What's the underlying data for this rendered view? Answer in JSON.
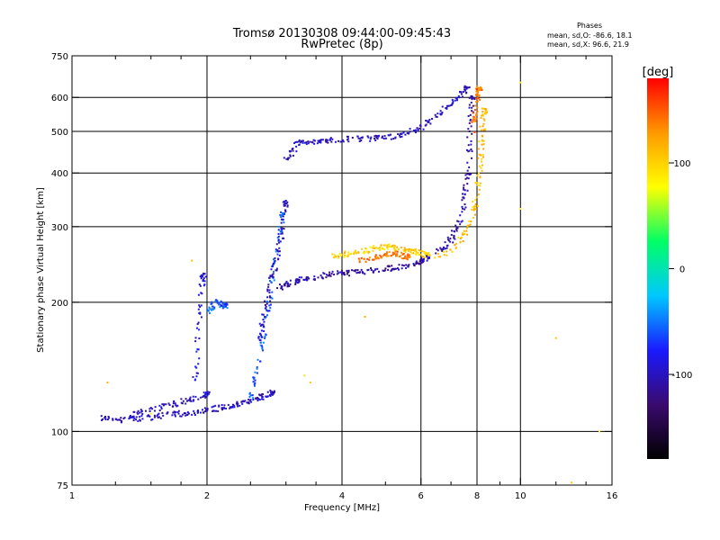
{
  "chart_data": {
    "type": "scatter",
    "title": "Tromsø 20130308 09:44:00-09:45:43",
    "subtitle": "RwPretec (8p)",
    "xlabel": "Frequency [MHz]",
    "ylabel": "Stationary phase Virtual Height [km]",
    "x_scale": "log",
    "y_scale": "log",
    "xlim": [
      1,
      16
    ],
    "ylim": [
      75,
      750
    ],
    "grid": true,
    "x_ticks": [
      1,
      2,
      4,
      6,
      8,
      10,
      16
    ],
    "x_minor_ticks": [
      1.25,
      1.5,
      1.75,
      2.5,
      3,
      3.5,
      5,
      7,
      9,
      12,
      14
    ],
    "y_ticks": [
      75,
      100,
      200,
      300,
      400,
      500,
      600,
      750
    ],
    "x_gridlines": [
      2,
      4,
      6,
      8,
      10
    ],
    "y_gridlines": [
      100,
      200,
      300,
      400,
      500,
      600
    ],
    "stats": {
      "heading": "Phases",
      "line1": "mean, sd,O: -86.6, 18.1",
      "line2": "mean, sd,X:  96.6, 21.9"
    },
    "colorbar": {
      "label": "[deg]",
      "ticks": [
        100,
        0,
        -100
      ],
      "range": [
        -180,
        180
      ],
      "colormap": [
        "#000000",
        "#3a0a6e",
        "#1a1aff",
        "#00c8ff",
        "#00ff66",
        "#ffff00",
        "#ff9900",
        "#ff0000"
      ]
    },
    "series": [
      {
        "trace": "o_low_f",
        "phase": -100,
        "x": [
          1.15,
          1.2,
          1.3,
          1.4,
          1.5,
          1.6,
          1.7,
          1.8,
          1.9,
          2.0,
          2.1,
          2.2,
          2.3,
          2.4,
          2.5,
          2.6,
          2.7,
          2.8
        ],
        "y": [
          108,
          107,
          106,
          107,
          108,
          109,
          110,
          110,
          111,
          112,
          113,
          114,
          115,
          117,
          118,
          120,
          121,
          123
        ]
      },
      {
        "trace": "o_E_lower",
        "phase": -100,
        "x": [
          1.3,
          1.4,
          1.5,
          1.6,
          1.7,
          1.8,
          1.9,
          2.0
        ],
        "y": [
          108,
          110,
          112,
          114,
          116,
          118,
          120,
          122
        ]
      },
      {
        "trace": "o_rise_2",
        "phase": -90,
        "x": [
          1.88,
          1.9,
          1.92,
          1.94,
          1.96
        ],
        "y": [
          130,
          150,
          180,
          210,
          230
        ]
      },
      {
        "trace": "o_rise_2b",
        "phase": -60,
        "x": [
          2.0,
          2.05,
          2.1,
          2.15,
          2.2
        ],
        "y": [
          190,
          195,
          200,
          198,
          196
        ]
      },
      {
        "trace": "o_rise_27",
        "phase": -60,
        "x": [
          2.5,
          2.55,
          2.6,
          2.65,
          2.7,
          2.75,
          2.8,
          2.85,
          2.9,
          2.95
        ],
        "y": [
          120,
          130,
          140,
          160,
          180,
          200,
          230,
          260,
          290,
          320
        ]
      },
      {
        "trace": "o_rise_27b",
        "phase": -100,
        "x": [
          2.6,
          2.65,
          2.7,
          2.75,
          2.8,
          2.85,
          2.9,
          2.95,
          3.0
        ],
        "y": [
          160,
          175,
          190,
          210,
          230,
          250,
          270,
          300,
          340
        ]
      },
      {
        "trace": "o_F1_plateau",
        "phase": -110,
        "x": [
          2.9,
          3.0,
          3.1,
          3.2,
          3.3,
          3.5,
          3.7,
          3.9,
          4.1,
          4.3,
          4.5,
          4.8,
          5.1,
          5.4,
          5.7,
          6.0
        ],
        "y": [
          215,
          220,
          222,
          225,
          227,
          229,
          231,
          233,
          234,
          235,
          236,
          238,
          240,
          242,
          245,
          248
        ]
      },
      {
        "trace": "o_F_top",
        "phase": -100,
        "x": [
          3.0,
          3.1,
          3.2,
          3.3,
          3.5,
          3.7,
          3.9,
          4.2,
          4.5,
          4.8,
          5.1,
          5.4,
          5.7,
          6.0,
          6.3,
          6.6,
          7.0,
          7.3,
          7.6
        ],
        "y": [
          430,
          450,
          470,
          470,
          475,
          475,
          478,
          480,
          480,
          482,
          485,
          490,
          500,
          510,
          530,
          550,
          580,
          600,
          630
        ]
      },
      {
        "trace": "x_plateau",
        "phase": 100,
        "x": [
          3.8,
          4.0,
          4.2,
          4.4,
          4.6,
          4.8,
          5.0,
          5.2,
          5.4,
          5.6,
          5.8,
          6.0,
          6.2
        ],
        "y": [
          255,
          258,
          260,
          262,
          265,
          268,
          270,
          268,
          266,
          264,
          262,
          260,
          258
        ]
      },
      {
        "trace": "x_plateau_b",
        "phase": 140,
        "x": [
          4.4,
          4.6,
          4.8,
          5.0,
          5.2,
          5.4,
          5.6
        ],
        "y": [
          250,
          252,
          255,
          258,
          260,
          258,
          255
        ]
      },
      {
        "trace": "o_foF2",
        "phase": -110,
        "x": [
          6.0,
          6.4,
          6.8,
          7.0,
          7.2,
          7.4,
          7.5,
          7.6,
          7.7,
          7.7,
          7.75,
          7.8
        ],
        "y": [
          250,
          258,
          270,
          280,
          295,
          320,
          350,
          380,
          420,
          480,
          540,
          600
        ]
      },
      {
        "trace": "x_foF2",
        "phase": 110,
        "x": [
          6.5,
          7.0,
          7.4,
          7.7,
          7.9,
          8.0,
          8.1,
          8.15,
          8.2,
          8.25,
          8.3
        ],
        "y": [
          255,
          265,
          280,
          300,
          330,
          360,
          400,
          440,
          480,
          520,
          560
        ]
      },
      {
        "trace": "x_foF2_b",
        "phase": 140,
        "x": [
          7.8,
          7.9,
          8.0,
          8.05,
          8.1
        ],
        "y": [
          500,
          540,
          580,
          610,
          630
        ]
      },
      {
        "trace": "scatter_misc",
        "phase": 100,
        "x": [
          1.2,
          1.5,
          1.85,
          3.3,
          3.4,
          4.5,
          10.0,
          10.0,
          12.0,
          13.0,
          15.0
        ],
        "y": [
          130,
          110,
          250,
          135,
          130,
          185,
          650,
          330,
          165,
          76,
          100
        ]
      }
    ]
  }
}
